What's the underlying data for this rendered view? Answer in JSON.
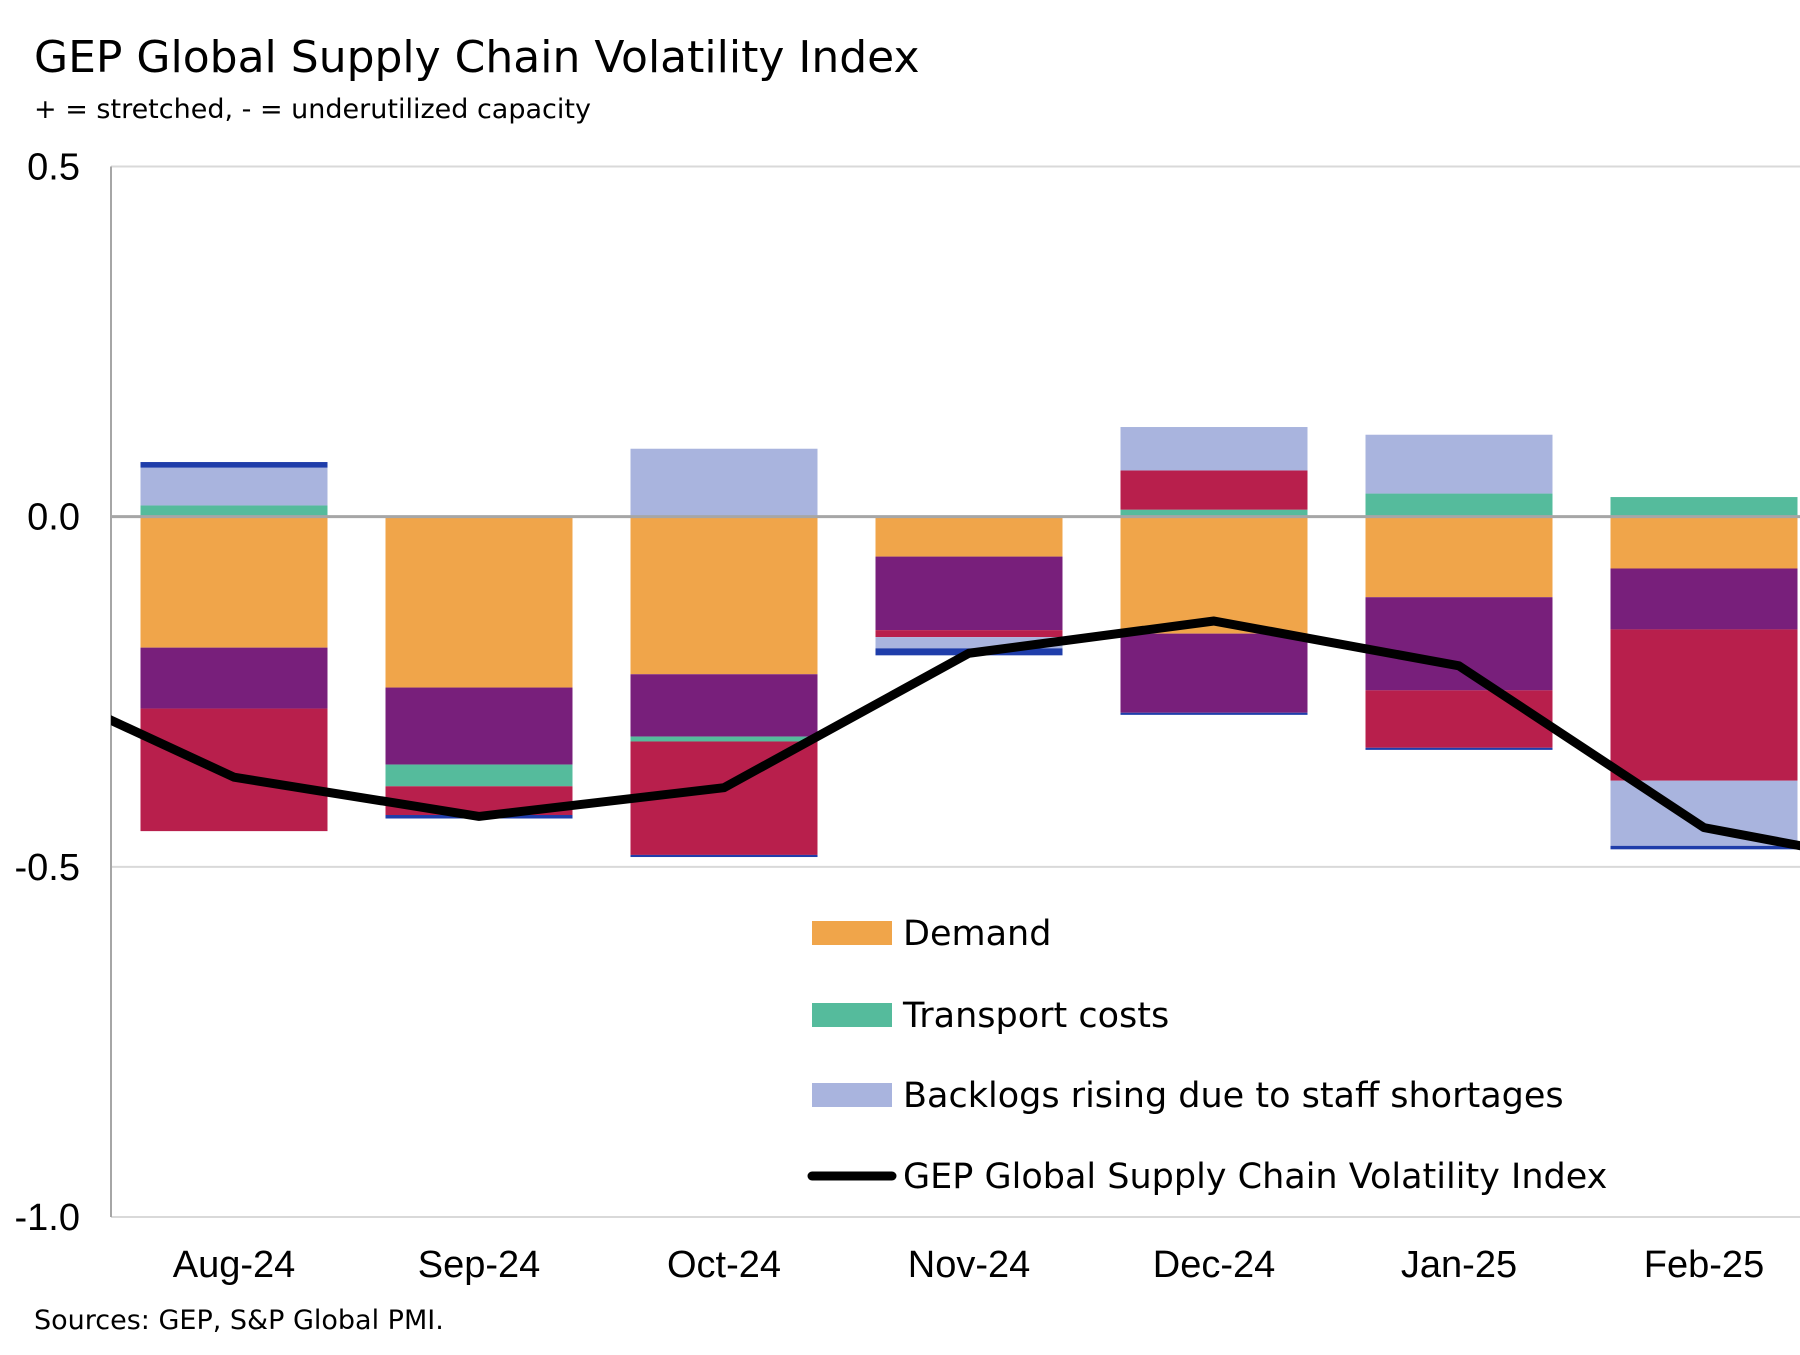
{
  "chart_data": {
    "type": "bar",
    "stacked": true,
    "title": "GEP Global Supply Chain Volatility Index",
    "subtitle": "+ = stretched, - = underutilized capacity",
    "source": "Sources: GEP, S&P Global PMI.",
    "categories": [
      "Aug-24",
      "Sep-24",
      "Oct-24",
      "Nov-24",
      "Dec-24",
      "Jan-25",
      "Feb-25"
    ],
    "ylim": [
      -1.0,
      0.5
    ],
    "yticks": [
      0.5,
      0.0,
      -0.5,
      -1.0
    ],
    "ytick_labels": [
      "0.5",
      "0.0",
      "-0.5",
      "-1.0"
    ],
    "grid": true,
    "legend_placement": "bottom-center",
    "series": [
      {
        "name": "Demand",
        "color": "#F0A54A",
        "values": [
          -0.187,
          -0.244,
          -0.225,
          -0.057,
          -0.167,
          -0.115,
          -0.074
        ]
      },
      {
        "name": "",
        "color": "#781F7B",
        "values": [
          -0.087,
          -0.11,
          -0.089,
          -0.105,
          -0.113,
          -0.133,
          -0.087
        ]
      },
      {
        "name": "Transport costs",
        "color": "#55BB9C",
        "values": [
          0.016,
          -0.031,
          -0.007,
          0,
          0.01,
          0.033,
          0.028
        ]
      },
      {
        "name": "",
        "color": "#B81F4C",
        "values": [
          -0.175,
          -0.041,
          -0.162,
          -0.01,
          0.056,
          -0.082,
          -0.216
        ]
      },
      {
        "name": "Backlogs rising due to staff shortages",
        "color": "#A9B4DE",
        "values": [
          0.054,
          0,
          0.097,
          -0.016,
          0.062,
          0.084,
          -0.093
        ]
      },
      {
        "name": "",
        "color": "#1F3DAA",
        "values": [
          0.008,
          -0.005,
          -0.003,
          -0.01,
          -0.003,
          -0.003,
          -0.005
        ]
      }
    ],
    "line": {
      "name": "GEP Global Supply Chain Volatility Index",
      "type": "line",
      "color": "#000000",
      "values": [
        -0.372,
        -0.428,
        -0.387,
        -0.195,
        -0.149,
        -0.213,
        -0.444
      ],
      "value_before_first": -0.21,
      "value_after_last": -0.51
    },
    "legend": [
      {
        "label": "Demand",
        "color": "#F0A54A",
        "kind": "box"
      },
      {
        "label": "Transport costs",
        "color": "#55BB9C",
        "kind": "box"
      },
      {
        "label": "Backlogs rising due to staff shortages",
        "color": "#A9B4DE",
        "kind": "box"
      },
      {
        "label": "GEP Global Supply Chain Volatility Index",
        "color": "#000000",
        "kind": "line"
      }
    ]
  }
}
